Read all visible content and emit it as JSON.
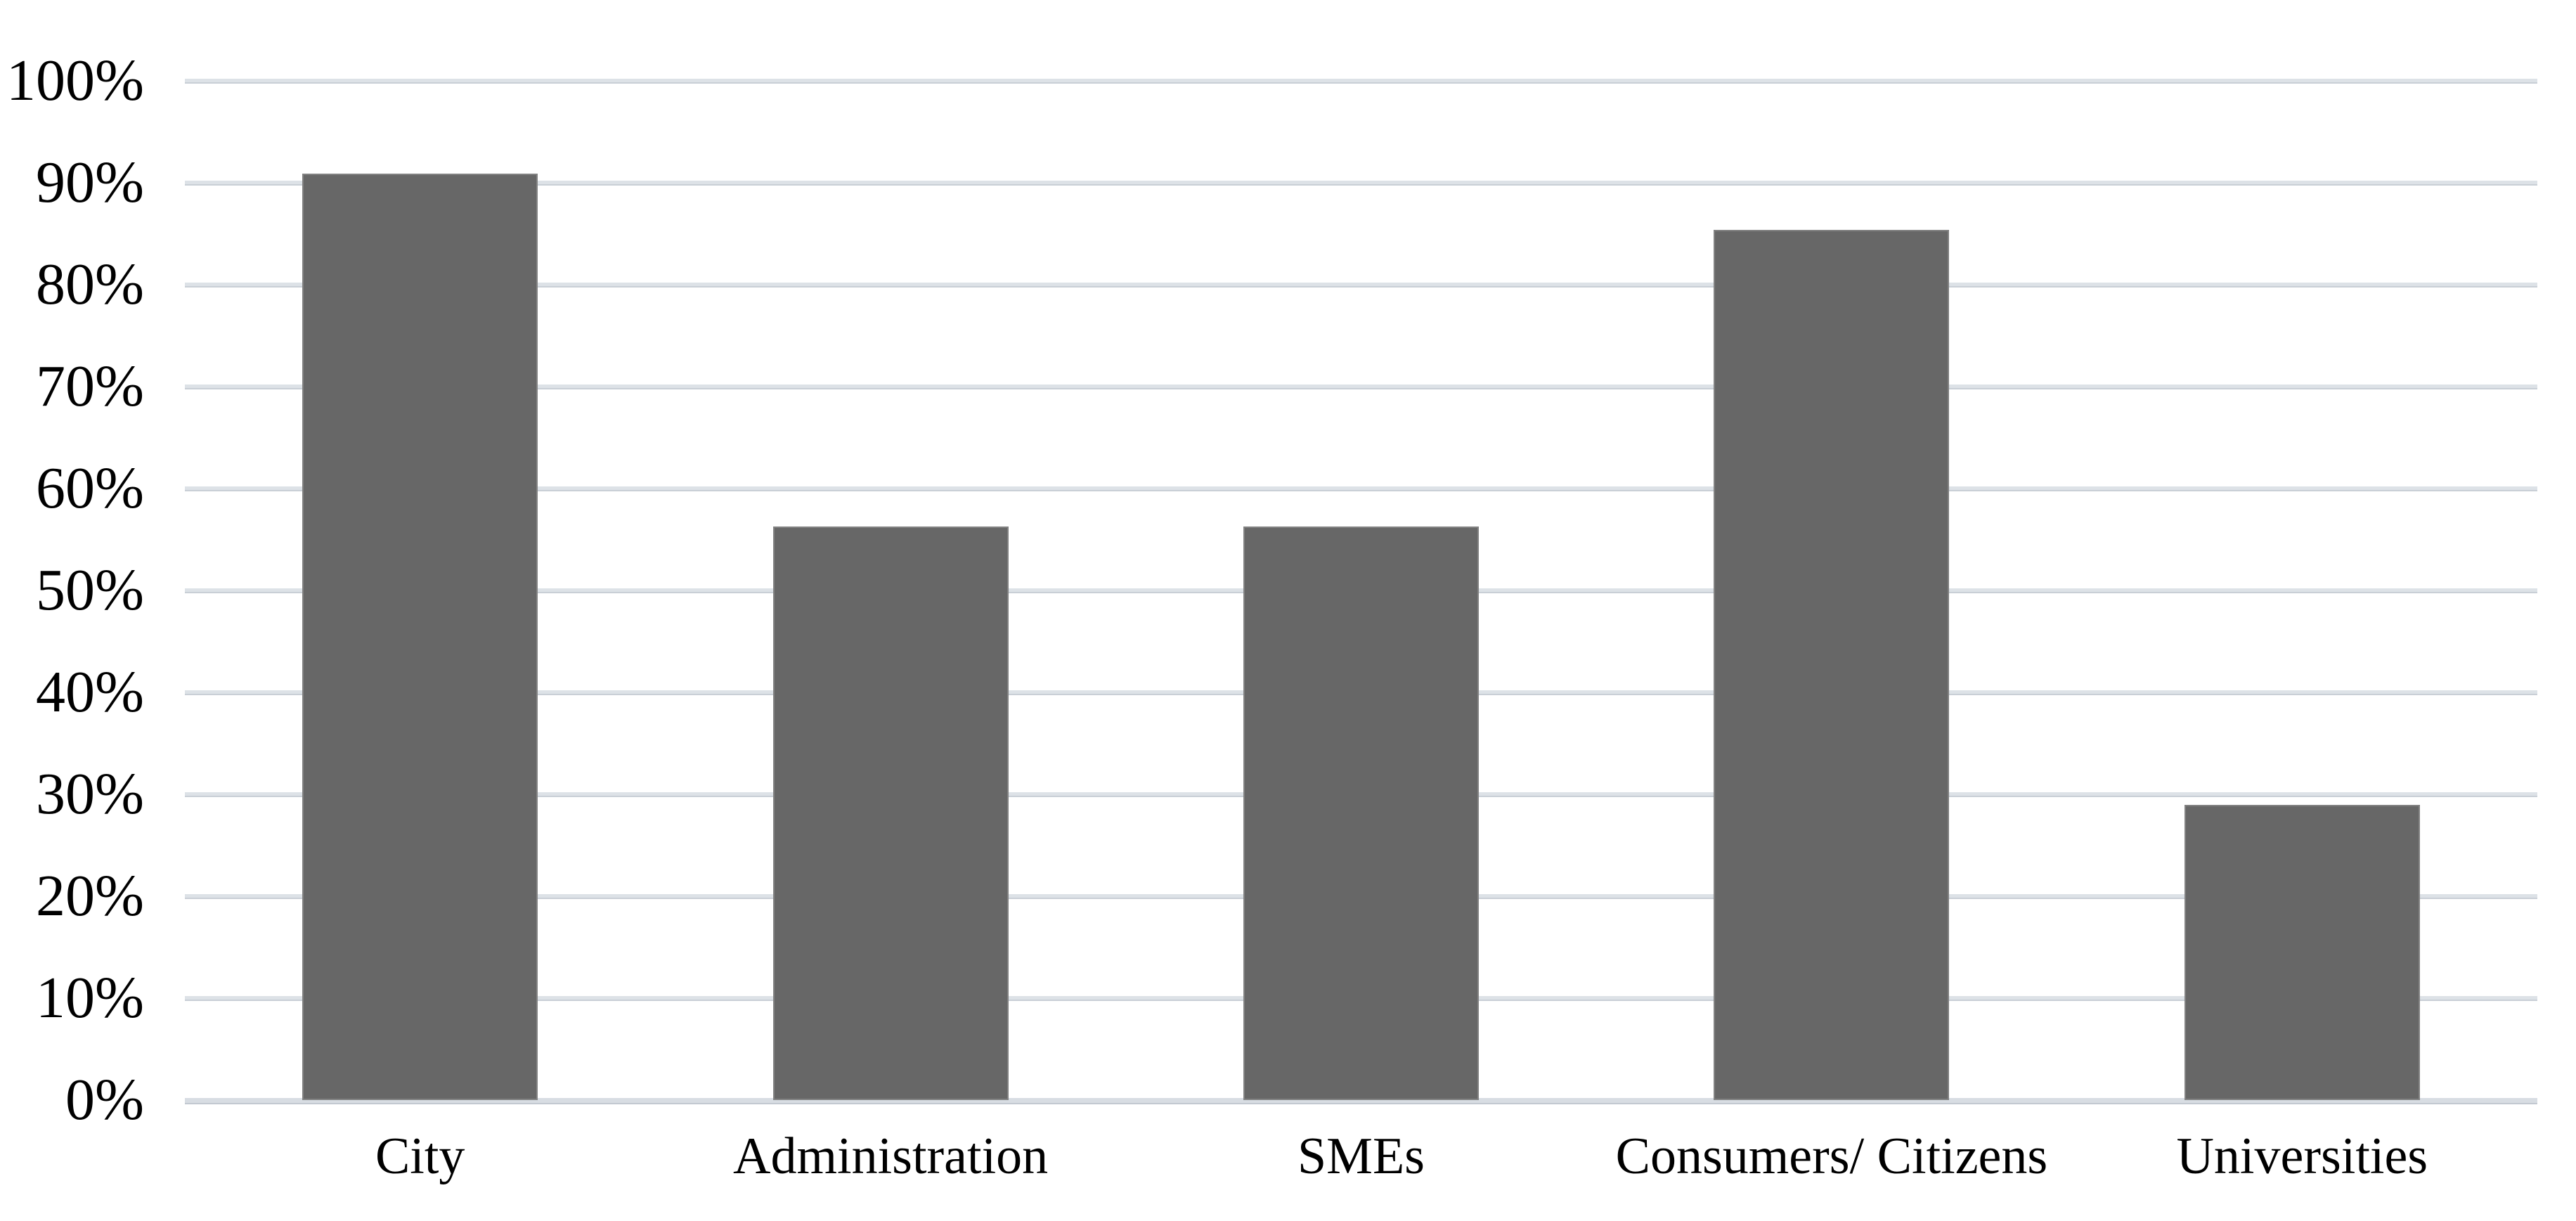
{
  "chart_data": {
    "type": "bar",
    "categories": [
      "City",
      "Administration",
      "SMEs",
      "Consumers/ Citizens",
      "Universities"
    ],
    "values": [
      90.9,
      56.3,
      56.3,
      85.4,
      29.0
    ],
    "value_unit": "percent",
    "title": "",
    "xlabel": "",
    "ylabel": "",
    "ylim": [
      0,
      100
    ],
    "ytick_step": 10,
    "ytick_labels": [
      "0%",
      "10%",
      "20%",
      "30%",
      "40%",
      "50%",
      "60%",
      "70%",
      "80%",
      "90%",
      "100%"
    ],
    "grid": true,
    "legend": false,
    "bar_color": "#676767",
    "gridline_color": "#dde2e7",
    "axis_line_color": "#d8dde3",
    "text_color": "#000000",
    "background_color": "#ffffff"
  }
}
